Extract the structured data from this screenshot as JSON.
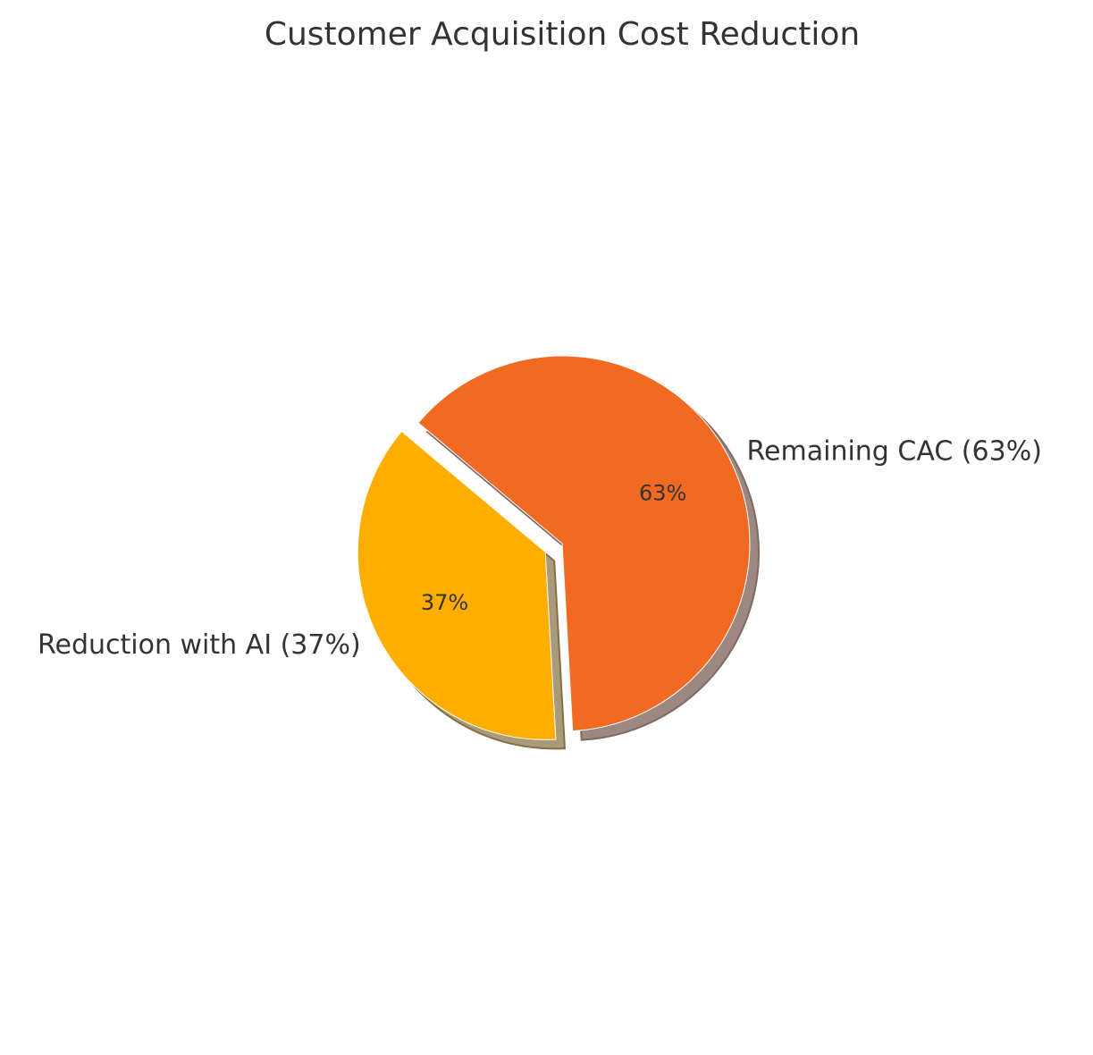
{
  "chart_data": {
    "type": "pie",
    "title": "Customer Acquisition Cost Reduction",
    "start_angle_deg": 140,
    "direction": "counterclockwise",
    "shadow": true,
    "slices": [
      {
        "label": "Reduction with AI (37%)",
        "value": 37,
        "pct_label": "37%",
        "color": "#ffae00",
        "explode": 0.1
      },
      {
        "label": "Remaining CAC (63%)",
        "value": 63,
        "pct_label": "63%",
        "color": "#f26a21",
        "explode": 0
      }
    ]
  }
}
